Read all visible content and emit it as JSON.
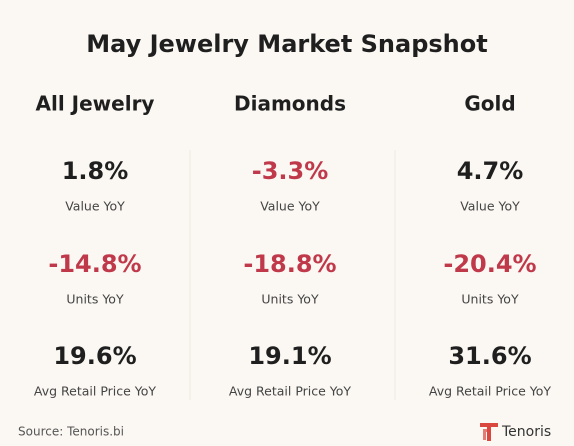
{
  "title": "May Jewelry Market Snapshot",
  "columns": [
    {
      "heading": "All Jewelry",
      "metrics": [
        {
          "value": "1.8%",
          "label": "Value YoY"
        },
        {
          "value": "-14.8%",
          "label": "Units YoY"
        },
        {
          "value": "19.6%",
          "label": "Avg Retail Price YoY"
        }
      ]
    },
    {
      "heading": "Diamonds",
      "metrics": [
        {
          "value": "-3.3%",
          "label": "Value YoY"
        },
        {
          "value": "-18.8%",
          "label": "Units YoY"
        },
        {
          "value": "19.1%",
          "label": "Avg Retail Price YoY"
        }
      ]
    },
    {
      "heading": "Gold",
      "metrics": [
        {
          "value": "4.7%",
          "label": "Value YoY"
        },
        {
          "value": "-20.4%",
          "label": "Units YoY"
        },
        {
          "value": "31.6%",
          "label": "Avg Retail Price YoY"
        }
      ]
    }
  ],
  "footer": {
    "source": "Source: Tenoris.bi",
    "brand": "Tenoris"
  }
}
